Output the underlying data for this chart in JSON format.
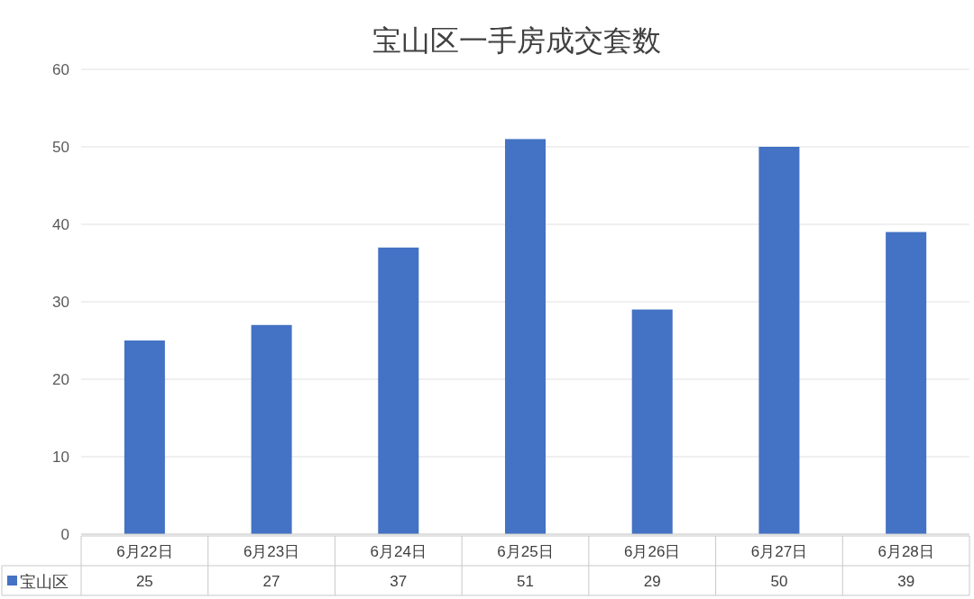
{
  "chart_data": {
    "type": "bar",
    "title": "宝山区一手房成交套数",
    "categories": [
      "6月22日",
      "6月23日",
      "6月24日",
      "6月25日",
      "6月26日",
      "6月27日",
      "6月28日"
    ],
    "series": [
      {
        "name": "宝山区",
        "color": "#4472c4",
        "values": [
          25,
          27,
          37,
          51,
          29,
          50,
          39
        ]
      }
    ],
    "ylim": [
      0,
      60
    ],
    "yticks": [
      0,
      10,
      20,
      30,
      40,
      50,
      60
    ],
    "grid": "y",
    "data_labels": true,
    "legend": "bottom left"
  }
}
